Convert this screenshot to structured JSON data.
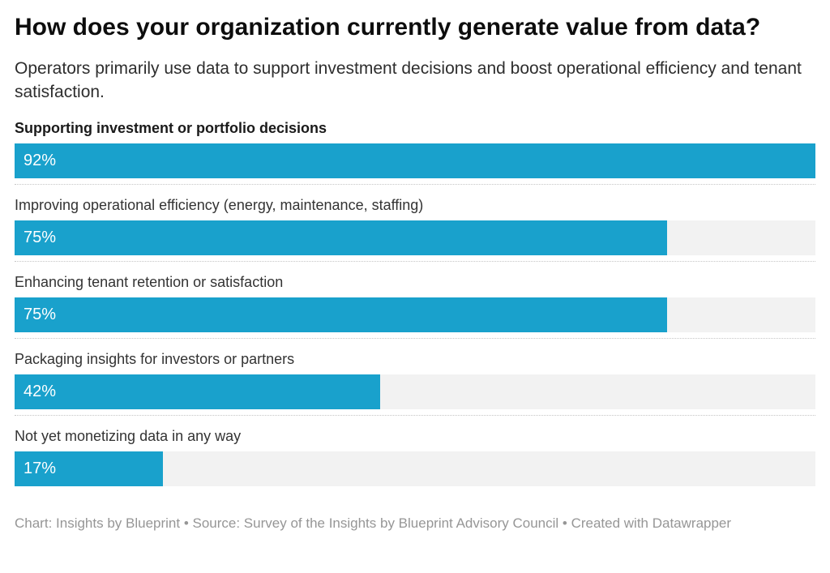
{
  "footer": {
    "text": "Chart: Insights by Blueprint • Source: Survey of the Insights by Blueprint Advisory Council • Created with Datawrapper"
  },
  "colors": {
    "bar": "#19A1CC",
    "track": "#F2F2F2",
    "title_text": "#0D0D0D",
    "footer_text": "#969696"
  },
  "chart_data": {
    "type": "bar",
    "orientation": "horizontal",
    "title": "How does your organization currently generate value from data?",
    "subtitle": "Operators primarily use data to support investment decisions and boost operational efficiency and tenant satisfaction.",
    "categories": [
      "Supporting investment or portfolio decisions",
      "Improving operational efficiency (energy, maintenance, staffing)",
      "Enhancing tenant retention or satisfaction",
      "Packaging insights for investors or partners",
      "Not yet monetizing data in any way"
    ],
    "values": [
      92,
      75,
      75,
      42,
      17
    ],
    "value_labels": [
      "92%",
      "75%",
      "75%",
      "42%",
      "17%"
    ],
    "unit": "%",
    "xlim": [
      0,
      92
    ],
    "emphasized_category_index": 0,
    "bar_color": "#19A1CC",
    "track_color": "#F2F2F2",
    "grid": "off",
    "legend": "none",
    "value_label_position": "inside-left",
    "row_separator": "dotted"
  }
}
